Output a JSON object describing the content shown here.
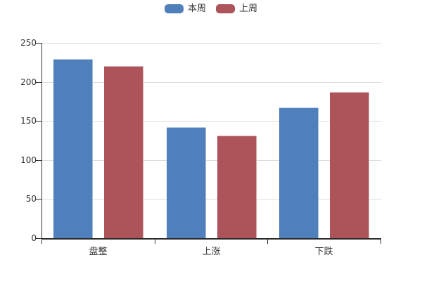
{
  "colors": {
    "series_this_week": "#4f80bc",
    "series_last_week": "#ac545a",
    "grid": "#dcdcdc",
    "axis": "#333333",
    "text": "#333333",
    "background": "#ffffff"
  },
  "legend": {
    "items": [
      {
        "label": "本周",
        "color": "#4f80bc"
      },
      {
        "label": "上周",
        "color": "#ac545a"
      }
    ]
  },
  "chart_data": {
    "type": "bar",
    "title": "",
    "categories": [
      "盘整",
      "上涨",
      "下跌"
    ],
    "series": [
      {
        "name": "本周",
        "color": "#4f80bc",
        "values": [
          229,
          142,
          167
        ]
      },
      {
        "name": "上周",
        "color": "#ac545a",
        "values": [
          220,
          131,
          187
        ]
      }
    ],
    "ylim": [
      0,
      250
    ],
    "yticks": [
      0,
      50,
      100,
      150,
      200,
      250
    ],
    "grid": "horizontal-only",
    "legend_position": "top-center"
  }
}
